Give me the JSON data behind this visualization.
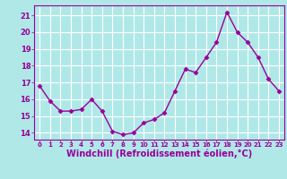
{
  "x": [
    0,
    1,
    2,
    3,
    4,
    5,
    6,
    7,
    8,
    9,
    10,
    11,
    12,
    13,
    14,
    15,
    16,
    17,
    18,
    19,
    20,
    21,
    22,
    23
  ],
  "y": [
    16.8,
    15.9,
    15.3,
    15.3,
    15.4,
    16.0,
    15.3,
    14.1,
    13.9,
    14.0,
    14.6,
    14.8,
    15.2,
    16.5,
    17.8,
    17.6,
    18.5,
    19.4,
    21.2,
    20.0,
    19.4,
    18.5,
    17.2,
    16.5
  ],
  "line_color": "#990099",
  "marker": "D",
  "marker_size": 2.5,
  "xlabel": "Windchill (Refroidissement éolien,°C)",
  "xlabel_fontsize": 7,
  "yticks": [
    14,
    15,
    16,
    17,
    18,
    19,
    20,
    21
  ],
  "xticks": [
    0,
    1,
    2,
    3,
    4,
    5,
    6,
    7,
    8,
    9,
    10,
    11,
    12,
    13,
    14,
    15,
    16,
    17,
    18,
    19,
    20,
    21,
    22,
    23
  ],
  "ylim": [
    13.6,
    21.6
  ],
  "xlim": [
    -0.5,
    23.5
  ],
  "bg_color": "#b0e8e8",
  "grid_color": "#ffffff",
  "tick_color": "#990099",
  "label_color": "#990099",
  "spine_color": "#990099"
}
